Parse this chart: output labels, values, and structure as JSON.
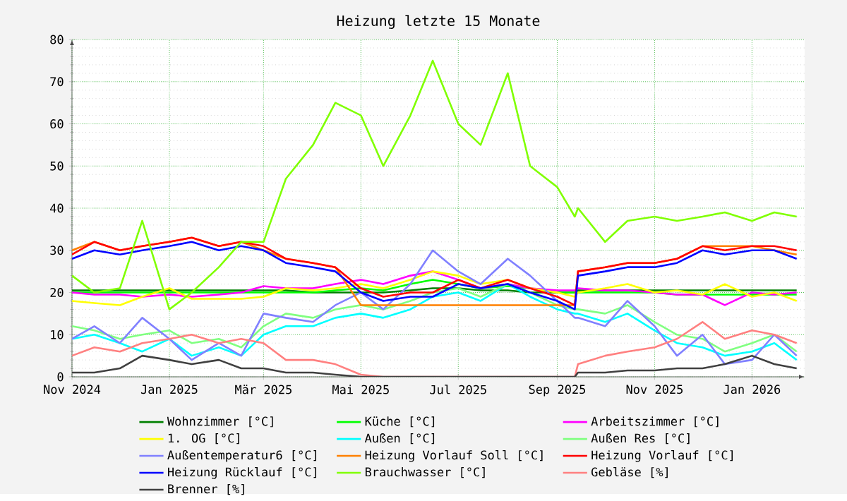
{
  "chart_data": {
    "type": "line",
    "title": "Heizung letzte 15 Monate",
    "x": [
      "2024-11-01",
      "2024-11-15",
      "2024-12-01",
      "2024-12-15",
      "2025-01-01",
      "2025-01-15",
      "2025-02-01",
      "2025-02-15",
      "2025-03-01",
      "2025-03-15",
      "2025-04-01",
      "2025-04-15",
      "2025-05-01",
      "2025-05-15",
      "2025-06-01",
      "2025-06-15",
      "2025-07-01",
      "2025-07-15",
      "2025-08-01",
      "2025-08-15",
      "2025-09-01",
      "2025-09-12",
      "2025-09-14",
      "2025-10-01",
      "2025-10-15",
      "2025-11-01",
      "2025-11-15",
      "2025-12-01",
      "2025-12-15",
      "2026-01-01",
      "2026-01-15",
      "2026-01-29"
    ],
    "xlim": [
      "2024-11-01",
      "2026-02-03"
    ],
    "xticks": [
      {
        "value": "2024-11-01",
        "label": "Nov 2024"
      },
      {
        "value": "2025-01-01",
        "label": "Jan 2025"
      },
      {
        "value": "2025-03-01",
        "label": "Mär 2025"
      },
      {
        "value": "2025-05-01",
        "label": "Mai 2025"
      },
      {
        "value": "2025-07-01",
        "label": "Jul 2025"
      },
      {
        "value": "2025-09-01",
        "label": "Sep 2025"
      },
      {
        "value": "2025-11-01",
        "label": "Nov 2025"
      },
      {
        "value": "2026-01-01",
        "label": "Jan 2026"
      }
    ],
    "ylim": [
      0,
      80
    ],
    "yticks": [
      0,
      10,
      20,
      30,
      40,
      50,
      60,
      70,
      80
    ],
    "grid": true,
    "legend": "bottom",
    "series": [
      {
        "name": "Wohnzimmer [°C]",
        "color": "#008000",
        "values": [
          20.5,
          20.5,
          20.5,
          20.5,
          20.5,
          20.5,
          20.5,
          20.5,
          20.5,
          20.5,
          20,
          20,
          20,
          20,
          20.5,
          21,
          21,
          20.5,
          20.5,
          20,
          20,
          20,
          20.5,
          20.5,
          20.5,
          20.5,
          20.5,
          20.5,
          20.5,
          20.5,
          20.5,
          20.5
        ]
      },
      {
        "name": "Küche [°C]",
        "color": "#00ff00",
        "values": [
          20,
          20,
          20,
          20,
          20,
          20,
          20,
          20,
          20,
          20,
          20,
          20.5,
          21,
          20.5,
          22,
          23,
          22,
          21,
          21.5,
          21,
          20,
          20,
          20,
          20,
          20,
          20,
          19.5,
          19.5,
          19.5,
          19.5,
          19.5,
          19.5
        ]
      },
      {
        "name": "Arbeitszimmer [°C]",
        "color": "#ff00ff",
        "values": [
          20,
          19.5,
          19.5,
          19,
          19.5,
          19,
          19.5,
          20,
          21.5,
          21,
          21,
          22,
          23,
          22,
          24,
          25,
          23,
          21,
          22,
          21,
          20.5,
          20.5,
          21,
          20.5,
          20.5,
          20,
          19.5,
          19.5,
          17,
          20,
          19.5,
          20
        ]
      },
      {
        "name": "1. OG [°C]",
        "color": "#ffff00",
        "values": [
          18,
          17.5,
          17,
          19,
          21,
          18.5,
          18.5,
          18.5,
          19,
          21,
          20.5,
          21,
          22,
          21,
          23,
          25,
          24,
          22,
          23,
          21,
          20,
          19,
          20,
          21,
          22,
          20,
          20.5,
          19.5,
          22,
          19,
          20,
          18
        ]
      },
      {
        "name": "Außen [°C]",
        "color": "#00ffff",
        "values": [
          9,
          10,
          8,
          6,
          9,
          5,
          7,
          5,
          10,
          12,
          12,
          14,
          15,
          14,
          16,
          19,
          20,
          18,
          22,
          19,
          16,
          15,
          15,
          13,
          15,
          11,
          8,
          7,
          5,
          6,
          8,
          4
        ]
      },
      {
        "name": "Außen Res [°C]",
        "color": "#80ff80",
        "values": [
          12,
          11,
          9,
          10,
          11,
          8,
          9,
          7,
          12,
          15,
          14,
          16,
          17,
          16,
          18,
          20,
          21,
          19,
          22,
          20,
          17,
          16,
          16,
          15,
          17,
          13,
          10,
          9,
          6,
          8,
          10,
          6
        ]
      },
      {
        "name": "Außentemperatur6 [°C]",
        "color": "#8080ff",
        "values": [
          9,
          12,
          8,
          14,
          9,
          4,
          8,
          5,
          15,
          14,
          13,
          17,
          20,
          16,
          22,
          30,
          25,
          22,
          28,
          24,
          18,
          14,
          14,
          12,
          18,
          12,
          5,
          10,
          3,
          4,
          10,
          5
        ]
      },
      {
        "name": "Heizung Vorlauf Soll [°C]",
        "color": "#ff8000",
        "values": [
          30,
          32,
          30,
          31,
          32,
          33,
          31,
          32,
          30,
          28,
          27,
          26,
          17,
          17,
          17,
          17,
          17,
          17,
          17,
          17,
          17,
          17,
          25,
          26,
          27,
          27,
          28,
          31,
          31,
          31,
          30,
          29
        ]
      },
      {
        "name": "Heizung Vorlauf [°C]",
        "color": "#ff0000",
        "values": [
          29,
          32,
          30,
          31,
          32,
          33,
          31,
          32,
          31,
          28,
          27,
          26,
          21,
          19,
          20,
          20,
          23,
          21,
          23,
          21,
          19,
          17,
          25,
          26,
          27,
          27,
          28,
          31,
          30,
          31,
          31,
          30
        ]
      },
      {
        "name": "Heizung Rücklauf [°C]",
        "color": "#0000ff",
        "values": [
          28,
          30,
          29,
          30,
          31,
          32,
          30,
          31,
          30,
          27,
          26,
          25,
          20,
          18,
          19,
          19,
          22,
          21,
          22,
          20,
          18,
          16,
          24,
          25,
          26,
          26,
          27,
          30,
          29,
          30,
          30,
          28
        ]
      },
      {
        "name": "Brauchwasser [°C]",
        "color": "#80ff00",
        "values": [
          24,
          20,
          21,
          37,
          16,
          20,
          26,
          32,
          32,
          47,
          55,
          65,
          62,
          50,
          62,
          75,
          60,
          55,
          72,
          50,
          45,
          38,
          40,
          32,
          37,
          38,
          37,
          38,
          39,
          37,
          39,
          38
        ]
      },
      {
        "name": "Gebläse [%]",
        "color": "#ff8080",
        "values": [
          5,
          7,
          6,
          8,
          9,
          10,
          8,
          9,
          8,
          4,
          4,
          3,
          0.5,
          0,
          0,
          0,
          0,
          0,
          0,
          0,
          0,
          0,
          3,
          5,
          6,
          7,
          9,
          13,
          9,
          11,
          10,
          8
        ]
      },
      {
        "name": "Brenner [%]",
        "color": "#404040",
        "values": [
          1,
          1,
          2,
          5,
          4,
          3,
          4,
          2,
          2,
          1,
          1,
          0.5,
          0,
          0,
          0,
          0,
          0,
          0,
          0,
          0,
          0,
          0,
          1,
          1,
          1.5,
          1.5,
          2,
          2,
          3,
          5,
          3,
          2
        ]
      }
    ]
  }
}
